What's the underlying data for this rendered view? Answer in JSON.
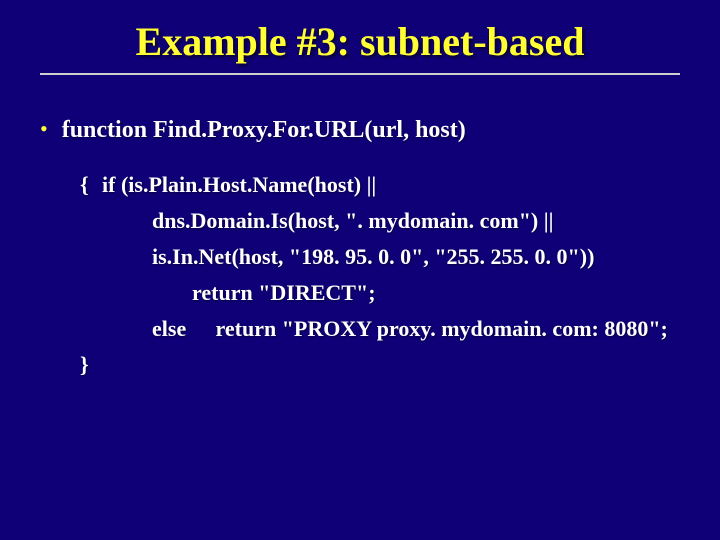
{
  "colors": {
    "background": "#100078",
    "title": "#ffff33",
    "bullet": "#ffff33",
    "text": "#ffffff",
    "rule": "#cfcfcf"
  },
  "typography": {
    "family": "Times New Roman",
    "title_size_pt": 40,
    "body_size_pt": 24,
    "code_size_pt": 22,
    "weight": "bold"
  },
  "title": "Example #3: subnet-based",
  "bullet_glyph": "•",
  "fn_decl": "function Find.Proxy.For.URL(url, host)",
  "code": {
    "open_brace": "{",
    "line1": "if (is.Plain.Host.Name(host) ||",
    "line2": "dns.Domain.Is(host, \". mydomain. com\") ||",
    "line3": "is.In.Net(host, \"198. 95. 0. 0\", \"255. 255. 0. 0\"))",
    "line4": "return \"DIRECT\";",
    "else_kw": "else",
    "line5_rest": "return \"PROXY proxy. mydomain. com: 8080\";",
    "close_brace": "}"
  }
}
